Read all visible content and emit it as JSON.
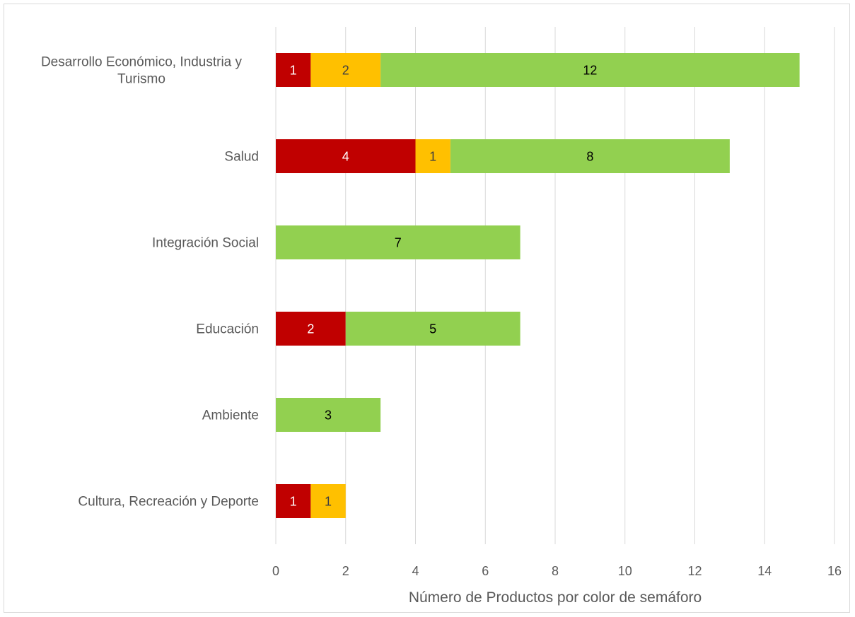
{
  "chart_data": {
    "type": "bar",
    "orientation": "horizontal",
    "stacked": true,
    "categories": [
      "Desarrollo Económico, Industria y Turismo",
      "Salud",
      "Integración Social",
      "Educación",
      "Ambiente",
      "Cultura, Recreación y Deporte"
    ],
    "series": [
      {
        "color": "#c00000",
        "label_color": "#ffffff",
        "values": [
          1,
          4,
          0,
          2,
          0,
          1
        ]
      },
      {
        "color": "#ffc000",
        "label_color": "#404040",
        "values": [
          2,
          1,
          0,
          0,
          0,
          1
        ]
      },
      {
        "color": "#92d050",
        "label_color": "#000000",
        "values": [
          12,
          8,
          7,
          5,
          3,
          0
        ]
      }
    ],
    "title": "",
    "xlabel": "Número de Productos por color de semáforo",
    "ylabel": "",
    "xlim": [
      0,
      16
    ],
    "xticks": [
      0,
      2,
      4,
      6,
      8,
      10,
      12,
      14,
      16
    ],
    "grid": true,
    "legend": "none"
  }
}
